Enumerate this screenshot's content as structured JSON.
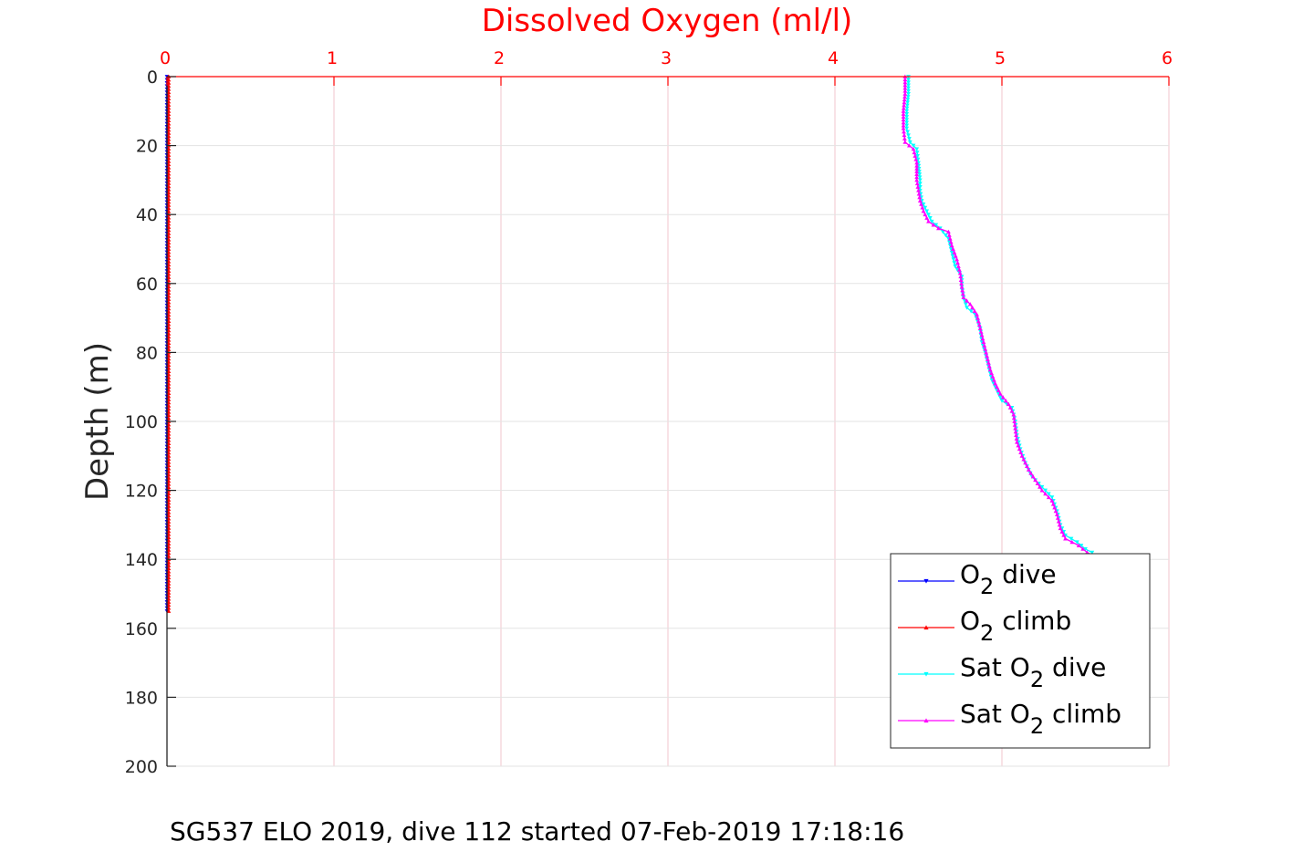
{
  "chart_data": {
    "type": "line",
    "title": "Dissolved Oxygen (ml/l)",
    "xlabel": "",
    "ylabel": "Depth (m)",
    "xlim": [
      0,
      6
    ],
    "ylim": [
      0,
      200
    ],
    "y_reversed": true,
    "x_axis_position": "top",
    "xticks": [
      0,
      1,
      2,
      3,
      4,
      5,
      6
    ],
    "yticks": [
      0,
      20,
      40,
      60,
      80,
      100,
      120,
      140,
      160,
      180,
      200
    ],
    "grid": true,
    "legend_position": "bottom-right",
    "colors": {
      "title": "#ff0000",
      "x_ticks": "#ff0000",
      "grid": "#f2c6cc",
      "o2_dive": "#0000ff",
      "o2_climb": "#ff0000",
      "sat_dive": "#00ffff",
      "sat_climb": "#ff00ff"
    },
    "series": [
      {
        "key": "o2_dive",
        "name_parts": [
          "O",
          "2",
          " dive"
        ],
        "marker": "down",
        "points": [
          [
            0.0,
            0
          ],
          [
            0.0,
            20
          ],
          [
            0.0,
            40
          ],
          [
            0.0,
            60
          ],
          [
            0.0,
            80
          ],
          [
            0.0,
            100
          ],
          [
            0.0,
            120
          ],
          [
            0.0,
            140
          ],
          [
            0.0,
            155
          ]
        ]
      },
      {
        "key": "o2_climb",
        "name_parts": [
          "O",
          "2",
          " climb"
        ],
        "marker": "up",
        "points": [
          [
            0.01,
            0
          ],
          [
            0.01,
            20
          ],
          [
            0.01,
            40
          ],
          [
            0.01,
            60
          ],
          [
            0.01,
            80
          ],
          [
            0.01,
            100
          ],
          [
            0.01,
            120
          ],
          [
            0.01,
            140
          ],
          [
            0.01,
            155
          ]
        ]
      },
      {
        "key": "sat_dive",
        "name_parts": [
          "Sat O",
          "2",
          " dive"
        ],
        "marker": "down",
        "points": [
          [
            4.44,
            0
          ],
          [
            4.44,
            5
          ],
          [
            4.43,
            10
          ],
          [
            4.43,
            15
          ],
          [
            4.45,
            19
          ],
          [
            4.49,
            21
          ],
          [
            4.5,
            25
          ],
          [
            4.51,
            30
          ],
          [
            4.51,
            33
          ],
          [
            4.52,
            36
          ],
          [
            4.55,
            39
          ],
          [
            4.58,
            42
          ],
          [
            4.63,
            44
          ],
          [
            4.68,
            47
          ],
          [
            4.7,
            51
          ],
          [
            4.72,
            55
          ],
          [
            4.76,
            58
          ],
          [
            4.76,
            61
          ],
          [
            4.77,
            64
          ],
          [
            4.79,
            67
          ],
          [
            4.84,
            69
          ],
          [
            4.87,
            73
          ],
          [
            4.88,
            77
          ],
          [
            4.9,
            80
          ],
          [
            4.92,
            84
          ],
          [
            4.94,
            88
          ],
          [
            4.97,
            91
          ],
          [
            5.0,
            94
          ],
          [
            5.06,
            96
          ],
          [
            5.08,
            100
          ],
          [
            5.09,
            104
          ],
          [
            5.11,
            108
          ],
          [
            5.14,
            112
          ],
          [
            5.18,
            116
          ],
          [
            5.24,
            119
          ],
          [
            5.3,
            122
          ],
          [
            5.33,
            126
          ],
          [
            5.35,
            130
          ],
          [
            5.38,
            133
          ],
          [
            5.45,
            135
          ],
          [
            5.5,
            137
          ],
          [
            5.54,
            138
          ]
        ]
      },
      {
        "key": "sat_climb",
        "name_parts": [
          "Sat O",
          "2",
          " climb"
        ],
        "marker": "up",
        "points": [
          [
            4.42,
            0
          ],
          [
            4.42,
            5
          ],
          [
            4.41,
            10
          ],
          [
            4.41,
            15
          ],
          [
            4.42,
            19
          ],
          [
            4.47,
            21
          ],
          [
            4.49,
            25
          ],
          [
            4.49,
            30
          ],
          [
            4.5,
            33
          ],
          [
            4.51,
            36
          ],
          [
            4.53,
            39
          ],
          [
            4.56,
            42
          ],
          [
            4.62,
            44
          ],
          [
            4.68,
            45
          ],
          [
            4.7,
            49
          ],
          [
            4.73,
            53
          ],
          [
            4.75,
            57
          ],
          [
            4.76,
            61
          ],
          [
            4.77,
            64
          ],
          [
            4.81,
            66
          ],
          [
            4.85,
            69
          ],
          [
            4.87,
            73
          ],
          [
            4.89,
            77
          ],
          [
            4.91,
            81
          ],
          [
            4.93,
            85
          ],
          [
            4.96,
            89
          ],
          [
            4.99,
            92
          ],
          [
            5.04,
            95
          ],
          [
            5.07,
            98
          ],
          [
            5.08,
            102
          ],
          [
            5.09,
            106
          ],
          [
            5.12,
            110
          ],
          [
            5.16,
            114
          ],
          [
            5.2,
            117
          ],
          [
            5.24,
            120
          ],
          [
            5.3,
            123
          ],
          [
            5.33,
            127
          ],
          [
            5.35,
            131
          ],
          [
            5.38,
            134
          ],
          [
            5.46,
            136
          ],
          [
            5.51,
            138
          ],
          [
            5.55,
            139
          ]
        ]
      }
    ]
  },
  "caption": "SG537 ELO 2019, dive 112 started 07-Feb-2019 17:18:16"
}
